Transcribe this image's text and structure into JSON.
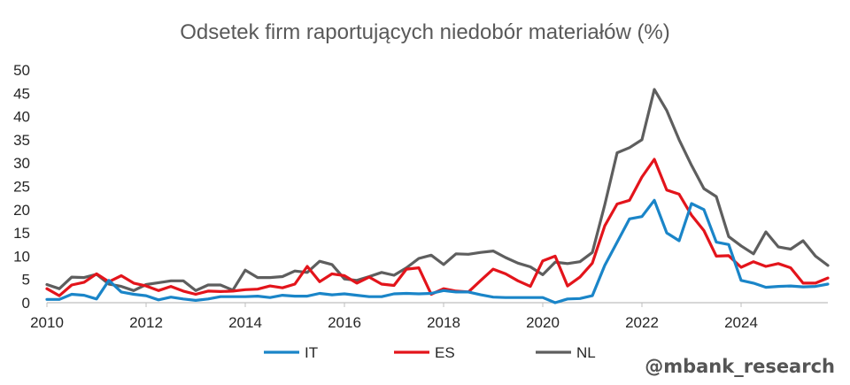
{
  "chart_data": {
    "type": "line",
    "title": "Odsetek firm raportujących niedobór materiałów (%)",
    "xlabel": "",
    "ylabel": "",
    "xlim": [
      2010,
      2025.75
    ],
    "ylim": [
      0,
      50
    ],
    "yticks": [
      "0",
      "5",
      "10",
      "15",
      "20",
      "25",
      "30",
      "35",
      "40",
      "45",
      "50"
    ],
    "xticks": [
      "2010",
      "2012",
      "2014",
      "2016",
      "2018",
      "2020",
      "2022",
      "2024"
    ],
    "grid": false,
    "legend_position": "bottom",
    "x": [
      2010.0,
      2010.25,
      2010.5,
      2010.75,
      2011.0,
      2011.25,
      2011.5,
      2011.75,
      2012.0,
      2012.25,
      2012.5,
      2012.75,
      2013.0,
      2013.25,
      2013.5,
      2013.75,
      2014.0,
      2014.25,
      2014.5,
      2014.75,
      2015.0,
      2015.25,
      2015.5,
      2015.75,
      2016.0,
      2016.25,
      2016.5,
      2016.75,
      2017.0,
      2017.25,
      2017.5,
      2017.75,
      2018.0,
      2018.25,
      2018.5,
      2018.75,
      2019.0,
      2019.25,
      2019.5,
      2019.75,
      2020.0,
      2020.25,
      2020.5,
      2020.75,
      2021.0,
      2021.25,
      2021.5,
      2021.75,
      2022.0,
      2022.25,
      2022.5,
      2022.75,
      2023.0,
      2023.25,
      2023.5,
      2023.75,
      2024.0,
      2024.25,
      2024.5,
      2024.75,
      2025.0,
      2025.25,
      2025.5,
      2025.75
    ],
    "series": [
      {
        "name": "IT",
        "color": "#1a85c8",
        "values": [
          0.7,
          0.7,
          1.8,
          1.6,
          0.8,
          4.8,
          2.3,
          1.8,
          1.5,
          0.6,
          1.2,
          0.8,
          0.5,
          0.8,
          1.3,
          1.3,
          1.3,
          1.4,
          1.1,
          1.6,
          1.4,
          1.4,
          2.0,
          1.7,
          1.9,
          1.6,
          1.3,
          1.3,
          1.9,
          2.0,
          1.9,
          2.0,
          2.6,
          2.3,
          2.3,
          1.7,
          1.2,
          1.1,
          1.1,
          1.1,
          1.1,
          0.0,
          0.8,
          0.9,
          1.5,
          8.0,
          13.0,
          18.0,
          18.5,
          22.0,
          15.0,
          13.3,
          21.3,
          20.0,
          13.0,
          12.5,
          4.8,
          4.2,
          3.3,
          3.5,
          3.6,
          3.4,
          3.5,
          4.0
        ]
      },
      {
        "name": "ES",
        "color": "#e3141b",
        "values": [
          3.0,
          1.5,
          3.8,
          4.4,
          6.2,
          4.5,
          5.8,
          4.2,
          3.6,
          2.6,
          3.5,
          2.5,
          1.8,
          2.5,
          2.4,
          2.5,
          2.8,
          2.9,
          3.6,
          3.2,
          4.0,
          7.8,
          4.5,
          6.2,
          5.8,
          4.2,
          5.5,
          4.0,
          3.7,
          7.2,
          7.5,
          1.8,
          3.0,
          2.5,
          2.3,
          4.8,
          7.2,
          6.2,
          4.7,
          3.5,
          9.0,
          10.0,
          3.6,
          5.5,
          8.5,
          16.5,
          21.2,
          22.0,
          27.0,
          30.8,
          24.2,
          23.3,
          18.8,
          15.5,
          10.0,
          10.1,
          7.6,
          8.8,
          7.8,
          8.4,
          7.5,
          4.2,
          4.2,
          5.3
        ]
      },
      {
        "name": "NL",
        "color": "#5e5e5e",
        "values": [
          3.9,
          3.0,
          5.5,
          5.4,
          6.1,
          4.0,
          3.5,
          2.6,
          3.9,
          4.3,
          4.7,
          4.7,
          2.6,
          3.8,
          3.8,
          2.7,
          7.0,
          5.4,
          5.4,
          5.6,
          6.8,
          6.5,
          8.9,
          8.2,
          5.1,
          4.8,
          5.6,
          6.5,
          5.9,
          7.5,
          9.5,
          10.2,
          8.2,
          10.5,
          10.4,
          10.8,
          11.1,
          9.7,
          8.5,
          7.7,
          6.0,
          8.7,
          8.4,
          8.8,
          10.8,
          21.0,
          32.2,
          33.3,
          35.0,
          45.8,
          41.3,
          35.0,
          29.5,
          24.5,
          22.8,
          14.2,
          12.2,
          10.5,
          15.2,
          12.0,
          11.5,
          13.3,
          10.0,
          8.0
        ]
      }
    ]
  },
  "watermark": "@mbank_research"
}
